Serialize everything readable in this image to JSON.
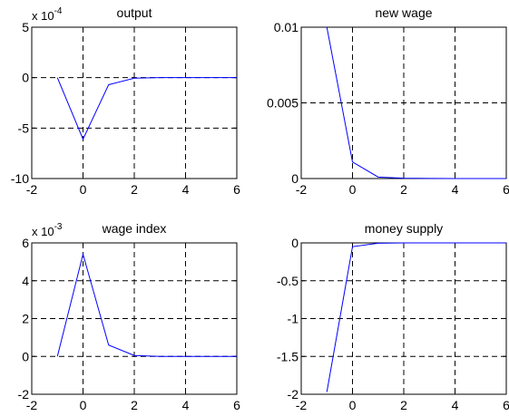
{
  "chart_data": [
    {
      "type": "line",
      "title": "output",
      "multiplier": {
        "base": "x 10",
        "exponent": "-4"
      },
      "x": [
        -1,
        0,
        1,
        2,
        3,
        4,
        5,
        6
      ],
      "series": [
        {
          "values": [
            0,
            -6.1,
            -0.7,
            -0.05,
            0,
            0,
            0,
            0
          ]
        }
      ],
      "xlim": [
        -2,
        6
      ],
      "ylim": [
        -10,
        5
      ],
      "xticks": [
        -2,
        0,
        2,
        4,
        6
      ],
      "yticks": [
        5,
        0,
        -5,
        -10
      ],
      "xtick_labels": [
        "-2",
        "0",
        "2",
        "4",
        "6"
      ],
      "ytick_labels": [
        "5",
        "0",
        "-5",
        "-10"
      ],
      "grid": true
    },
    {
      "type": "line",
      "title": "new wage",
      "x": [
        -1,
        0,
        1,
        2,
        3,
        4,
        5,
        6
      ],
      "series": [
        {
          "values": [
            0.01,
            0.0011,
            0.0001,
            2e-05,
            1e-05,
            0,
            0,
            0
          ]
        }
      ],
      "xlim": [
        -2,
        6
      ],
      "ylim": [
        0,
        0.01
      ],
      "xticks": [
        -2,
        0,
        2,
        4,
        6
      ],
      "yticks": [
        0.01,
        0.005,
        0
      ],
      "xtick_labels": [
        "-2",
        "0",
        "2",
        "4",
        "6"
      ],
      "ytick_labels": [
        "0.01",
        "0.005",
        "0"
      ],
      "grid": true
    },
    {
      "type": "line",
      "title": "wage index",
      "multiplier": {
        "base": "x 10",
        "exponent": "-3"
      },
      "x": [
        -1,
        0,
        1,
        2,
        3,
        4,
        5,
        6
      ],
      "series": [
        {
          "values": [
            0,
            5.4,
            0.6,
            0.05,
            0,
            0,
            0,
            0
          ]
        }
      ],
      "xlim": [
        -2,
        6
      ],
      "ylim": [
        -2,
        6
      ],
      "xticks": [
        -2,
        0,
        2,
        4,
        6
      ],
      "yticks": [
        6,
        4,
        2,
        0,
        -2
      ],
      "xtick_labels": [
        "-2",
        "0",
        "2",
        "4",
        "6"
      ],
      "ytick_labels": [
        "6",
        "4",
        "2",
        "0",
        "-2"
      ],
      "grid": true
    },
    {
      "type": "line",
      "title": "money supply",
      "x": [
        -1,
        0,
        1,
        2,
        3,
        4,
        5,
        6
      ],
      "series": [
        {
          "values": [
            -1.97,
            -0.05,
            -0.005,
            0,
            0,
            0,
            0,
            0
          ]
        }
      ],
      "xlim": [
        -2,
        6
      ],
      "ylim": [
        -2,
        0
      ],
      "xticks": [
        -2,
        0,
        2,
        4,
        6
      ],
      "yticks": [
        0,
        -0.5,
        -1,
        -1.5,
        -2
      ],
      "xtick_labels": [
        "-2",
        "0",
        "2",
        "4",
        "6"
      ],
      "ytick_labels": [
        "0",
        "-0.5",
        "-1",
        "-1.5",
        "-2"
      ],
      "grid": true
    }
  ],
  "colors": {
    "line": "#0000ff",
    "grid": "#000000",
    "axes": "#000000"
  }
}
